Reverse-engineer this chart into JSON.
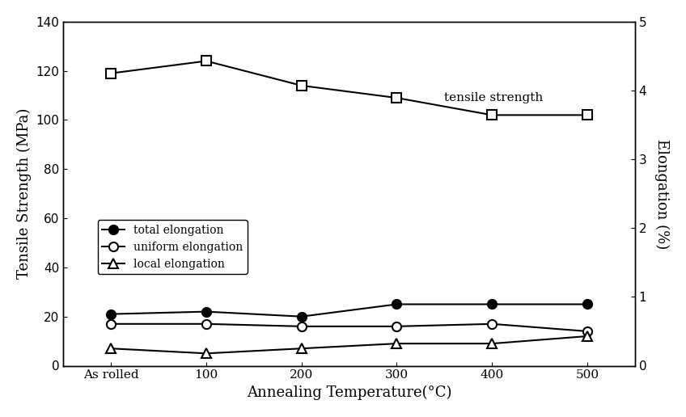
{
  "x_labels": [
    "As rolled",
    "100",
    "200",
    "300",
    "400",
    "500"
  ],
  "x_positions": [
    0,
    1,
    2,
    3,
    4,
    5
  ],
  "tensile_strength": [
    119,
    124,
    114,
    109,
    102,
    102
  ],
  "total_elongation": [
    21,
    22,
    20,
    25,
    25,
    25
  ],
  "uniform_elongation": [
    17,
    17,
    16,
    16,
    17,
    14
  ],
  "local_elongation": [
    7,
    5,
    7,
    9,
    9,
    12
  ],
  "xlabel": "Annealing Temperature(°C)",
  "ylabel_left": "Tensile Strength (MPa)",
  "ylabel_right": "Elongation (%)",
  "label_tensile": "tensile strength",
  "label_total": "total elongation",
  "label_uniform": "uniform elongation",
  "label_local": "local elongation",
  "ylim_left": [
    0,
    140
  ],
  "ylim_right": [
    0,
    5
  ],
  "yticks_left": [
    0,
    20,
    40,
    60,
    80,
    100,
    120,
    140
  ],
  "yticks_right": [
    0,
    1,
    2,
    3,
    4,
    5
  ],
  "bg_color": "#ffffff",
  "line_color": "#000000"
}
